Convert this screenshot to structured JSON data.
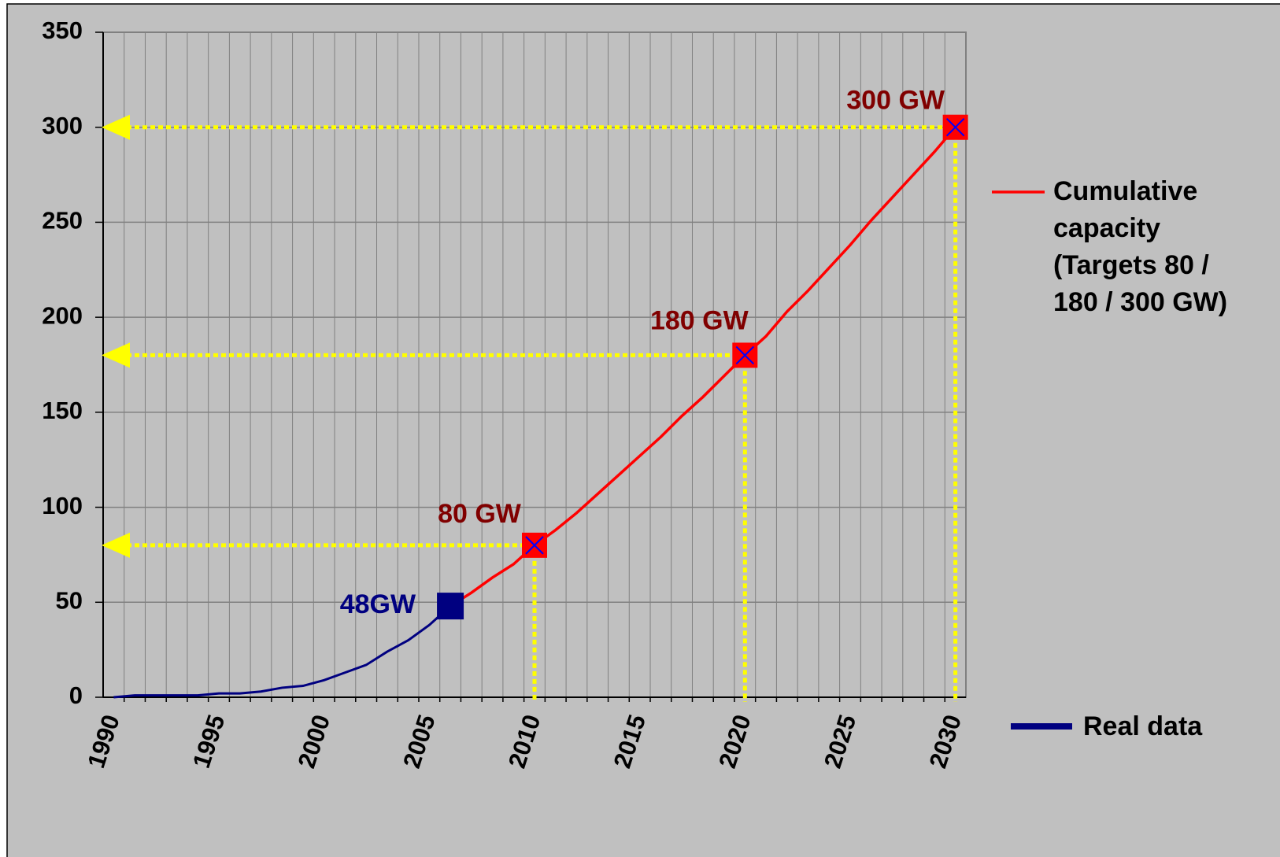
{
  "chart_data": {
    "type": "line",
    "x": [
      1990,
      1991,
      1992,
      1993,
      1994,
      1995,
      1996,
      1997,
      1998,
      1999,
      2000,
      2001,
      2002,
      2003,
      2004,
      2005,
      2006,
      2007,
      2008,
      2009,
      2010,
      2011,
      2012,
      2013,
      2014,
      2015,
      2016,
      2017,
      2018,
      2019,
      2020,
      2021,
      2022,
      2023,
      2024,
      2025,
      2026,
      2027,
      2028,
      2029,
      2030
    ],
    "series": [
      {
        "name": "Real data",
        "color": "#000080",
        "values": [
          0,
          1,
          1,
          1,
          1,
          2,
          2,
          3,
          5,
          6,
          9,
          13,
          17,
          24,
          30,
          38,
          48,
          null,
          null,
          null,
          null,
          null,
          null,
          null,
          null,
          null,
          null,
          null,
          null,
          null,
          null,
          null,
          null,
          null,
          null,
          null,
          null,
          null,
          null,
          null,
          null
        ]
      },
      {
        "name": "Cumulative capacity (Targets 80 / 180 / 300 GW)",
        "color": "#ff0000",
        "values": [
          null,
          null,
          null,
          null,
          null,
          null,
          null,
          null,
          null,
          null,
          null,
          null,
          null,
          null,
          null,
          null,
          48,
          55,
          63,
          70,
          80,
          88,
          97,
          107,
          117,
          127,
          137,
          148,
          158,
          169,
          180,
          190,
          203,
          214,
          226,
          238,
          251,
          263,
          275,
          287,
          300
        ]
      }
    ],
    "annotations": [
      {
        "text": "48GW",
        "x": 2006,
        "y": 48,
        "color": "#000080"
      },
      {
        "text": "80 GW",
        "x": 2010,
        "y": 80,
        "color": "#800000"
      },
      {
        "text": "180 GW",
        "x": 2020,
        "y": 180,
        "color": "#800000"
      },
      {
        "text": "300 GW",
        "x": 2030,
        "y": 300,
        "color": "#800000"
      }
    ],
    "xlim": [
      1989.5,
      2030.5
    ],
    "xticks": [
      1990,
      1995,
      2000,
      2005,
      2010,
      2015,
      2020,
      2025,
      2030
    ],
    "ylim": [
      0,
      350
    ],
    "yticks": [
      0,
      50,
      100,
      150,
      200,
      250,
      300,
      350
    ],
    "grid": true,
    "legend": "right"
  }
}
